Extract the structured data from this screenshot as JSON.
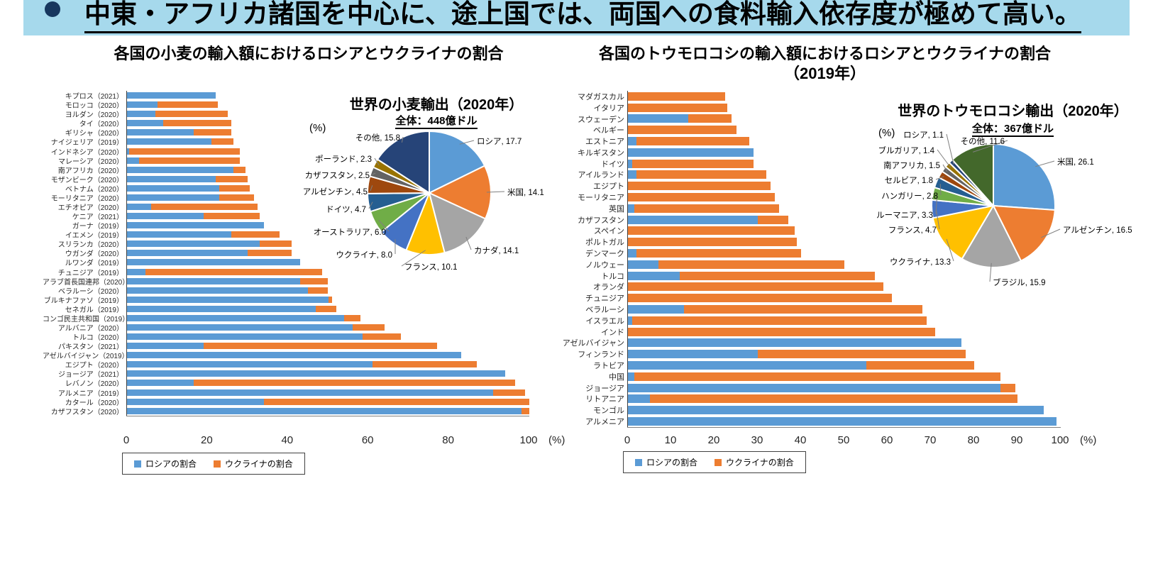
{
  "header": {
    "text": "中東・アフリカ諸国を中心に、途上国では、両国への食料輸入依存度が極めて高い。"
  },
  "colors": {
    "header_bg": "#A6D9EC",
    "bullet": "#17375E",
    "russia": "#5B9BD5",
    "ukraine": "#ED7D31",
    "axis_line": "#808080",
    "palette": [
      "#5B9BD5",
      "#ED7D31",
      "#A5A5A5",
      "#FFC000",
      "#4472C4",
      "#70AD47",
      "#255E91",
      "#9E480E",
      "#636363",
      "#997300",
      "#264478",
      "#43682B"
    ]
  },
  "chart_data": [
    {
      "id": "wheat_bars",
      "type": "bar",
      "orientation": "horizontal",
      "stacked": true,
      "grid": false,
      "legend_position": "bottom",
      "title": "各国の小麦の輸入額におけるロシアとウクライナの割合",
      "x_unit": "(%)",
      "xlim": [
        0,
        100
      ],
      "x_ticks": [
        0,
        20,
        40,
        60,
        80,
        100
      ],
      "categories": [
        "キプロス（2021）",
        "モロッコ（2020）",
        "ヨルダン（2020）",
        "タイ（2020）",
        "ギリシャ（2020）",
        "ナイジェリア（2019）",
        "インドネシア（2020）",
        "マレーシア（2020）",
        "南アフリカ（2020）",
        "モザンビーク（2020）",
        "ベトナム（2020）",
        "モーリタニア（2020）",
        "エチオピア（2020）",
        "ケニア（2021）",
        "ガーナ（2019）",
        "イエメン（2019）",
        "スリランカ（2020）",
        "ウガンダ（2020）",
        "ルワンダ（2019）",
        "チュニジア（2019）",
        "アラブ首長国連邦（2020）",
        "ベラルーシ（2020）",
        "ブルキナファソ（2019）",
        "セネガル（2019）",
        "コンゴ民主共和国（2019）",
        "アルバニア（2020）",
        "トルコ（2020）",
        "パキスタン（2021）",
        "アゼルバイジャン（2019）",
        "エジプト（2020）",
        "ジョージア（2021）",
        "レバノン（2020）",
        "アルメニア（2019）",
        "カタール（2020）",
        "カザフスタン（2020）"
      ],
      "series": [
        {
          "name": "ロシアの割合",
          "values": [
            22,
            7.5,
            7,
            9,
            16.5,
            21,
            0.5,
            3,
            26.5,
            22,
            23,
            23,
            6,
            19,
            34,
            26,
            33,
            30,
            43,
            4.5,
            43,
            45,
            50,
            47,
            54,
            56,
            58.5,
            19,
            83,
            61,
            94,
            16.5,
            91,
            34,
            98
          ]
        },
        {
          "name": "ウクライナの割合",
          "values": [
            0,
            15,
            18,
            17,
            9.5,
            5.5,
            27.5,
            25,
            3,
            8,
            7.5,
            8.5,
            26.5,
            14,
            0,
            12,
            8,
            11,
            0,
            44,
            7,
            5,
            1,
            5,
            4,
            8,
            9.5,
            58,
            0,
            26,
            0,
            80,
            8,
            66,
            2
          ]
        }
      ]
    },
    {
      "id": "wheat_pie",
      "type": "pie",
      "title": "世界の小麦輸出（2020年）",
      "subtitle": "全体：448億ドル",
      "unit": "(%)",
      "labels": [
        "ロシア",
        "米国",
        "カナダ",
        "フランス",
        "ウクライナ",
        "オーストラリア",
        "ドイツ",
        "アルゼンチン",
        "カザフスタン",
        "ポーランド",
        "その他"
      ],
      "values": [
        17.7,
        14.1,
        14.1,
        10.1,
        8.0,
        6.0,
        4.7,
        4.5,
        2.5,
        2.3,
        15.8
      ]
    },
    {
      "id": "corn_bars",
      "type": "bar",
      "orientation": "horizontal",
      "stacked": true,
      "grid": false,
      "legend_position": "bottom",
      "title": "各国のトウモロコシの輸入額におけるロシアとウクライナの割合",
      "title_line2": "（2019年）",
      "x_unit": "(%)",
      "xlim": [
        0,
        100
      ],
      "x_ticks": [
        0,
        10,
        20,
        30,
        40,
        50,
        60,
        70,
        80,
        90,
        100
      ],
      "categories": [
        "マダガスカル",
        "イタリア",
        "スウェーデン",
        "ベルギー",
        "エストニア",
        "キルギスタン",
        "ドイツ",
        "アイルランド",
        "エジプト",
        "モーリタニア",
        "英国",
        "カザフスタン",
        "スペイン",
        "ポルトガル",
        "デンマーク",
        "ノルウェー",
        "トルコ",
        "オランダ",
        "チュニジア",
        "ベラルーシ",
        "イスラエル",
        "インド",
        "アゼルバイジャン",
        "フィンランド",
        "ラトビア",
        "中国",
        "ジョージア",
        "リトアニア",
        "モンゴル",
        "アルメニア"
      ],
      "series": [
        {
          "name": "ロシアの割合",
          "values": [
            0,
            0,
            14,
            0,
            2,
            29,
            1,
            2,
            0,
            0,
            1.5,
            30,
            0,
            0,
            2,
            7,
            12,
            0,
            0,
            13,
            1,
            0,
            77,
            30,
            55,
            1.5,
            86,
            5,
            96,
            99
          ]
        },
        {
          "name": "ウクライナの割合",
          "values": [
            22.5,
            23,
            10,
            25,
            26,
            0,
            28,
            30,
            33,
            34,
            33.5,
            7,
            38.5,
            39,
            38,
            43,
            45,
            59,
            61,
            55,
            68,
            71,
            0,
            48,
            25,
            84.5,
            3.5,
            85,
            0,
            0
          ]
        }
      ]
    },
    {
      "id": "corn_pie",
      "type": "pie",
      "title": "世界のトウモロコシ輸出（2020年）",
      "subtitle": "全体：367億ドル",
      "unit": "(%)",
      "labels": [
        "米国",
        "アルゼンチン",
        "ブラジル",
        "ウクライナ",
        "フランス",
        "ルーマニア",
        "ハンガリー",
        "セルビア",
        "南アフリカ",
        "ブルガリア",
        "ロシア",
        "その他"
      ],
      "values": [
        26.1,
        16.5,
        15.9,
        13.3,
        4.7,
        3.3,
        2.8,
        1.8,
        1.5,
        1.4,
        1.1,
        11.6
      ]
    }
  ]
}
